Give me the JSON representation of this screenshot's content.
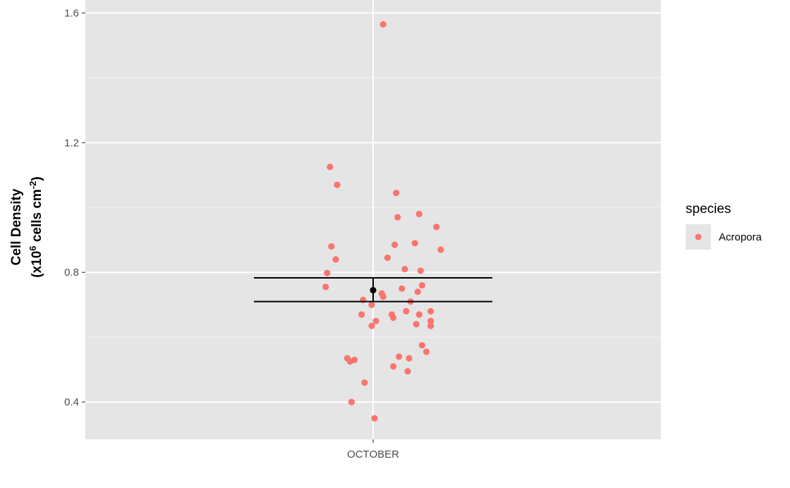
{
  "chart_data": {
    "type": "scatter",
    "xlabel": "",
    "ylabel_line1": "Cell Density",
    "ylabel_line2_prefix": "(x10",
    "ylabel_line2_sup1": "6",
    "ylabel_line2_mid": " cells cm",
    "ylabel_line2_sup2": "-2",
    "ylabel_line2_suffix": ")",
    "categories": [
      "OCTOBER"
    ],
    "ylim": [
      0.285,
      1.64
    ],
    "yticks": [
      0.4,
      0.8,
      1.2,
      1.6
    ],
    "ytick_labels": [
      "0.4",
      "0.8",
      "1.2",
      "1.6"
    ],
    "grid": true,
    "background": "#e5e5e5",
    "series": [
      {
        "name": "Acropora",
        "color": "#f8766d",
        "jitter_x": [
          0.035,
          -0.15,
          -0.125,
          -0.145,
          -0.13,
          -0.16,
          -0.165,
          0.08,
          0.16,
          0.085,
          0.22,
          0.145,
          0.075,
          0.235,
          0.05,
          0.11,
          0.165,
          0.17,
          0.1,
          0.155,
          0.03,
          0.13,
          0.2,
          -0.04,
          0.065,
          0.01,
          0.07,
          0.15,
          0.2,
          -0.005,
          0.17,
          0.185,
          0.09,
          0.125,
          -0.09,
          -0.065,
          -0.08,
          0.07,
          0.12,
          -0.03,
          -0.075,
          0.005,
          0.115,
          0.16,
          -0.035,
          0.035,
          -0.005,
          0.2
        ],
        "y": [
          1.565,
          1.125,
          1.07,
          0.88,
          0.84,
          0.798,
          0.755,
          1.045,
          0.98,
          0.97,
          0.94,
          0.89,
          0.885,
          0.87,
          0.845,
          0.81,
          0.805,
          0.76,
          0.75,
          0.74,
          0.735,
          0.71,
          0.68,
          0.67,
          0.67,
          0.65,
          0.66,
          0.64,
          0.635,
          0.635,
          0.575,
          0.555,
          0.54,
          0.535,
          0.535,
          0.53,
          0.525,
          0.51,
          0.495,
          0.46,
          0.4,
          0.35,
          0.68,
          0.67,
          0.715,
          0.725,
          0.7,
          0.65
        ]
      }
    ],
    "summary": {
      "mean": 0.745,
      "error_bar": [
        0.71,
        0.783
      ],
      "color": "#000000"
    },
    "legend": {
      "title": "species",
      "entries": [
        "Acropora"
      ],
      "placement": "right"
    }
  }
}
